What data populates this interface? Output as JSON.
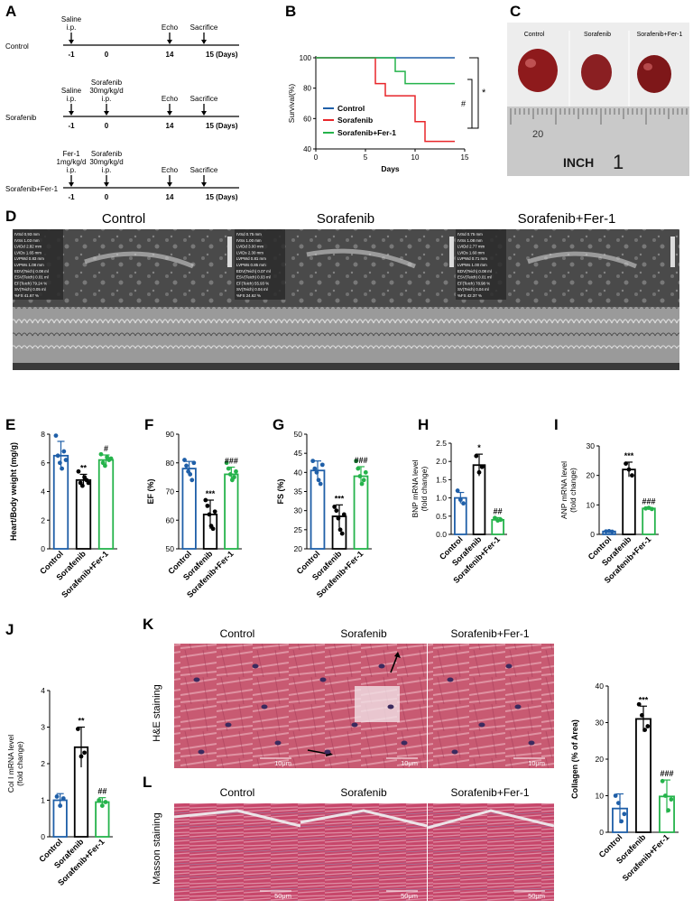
{
  "panels": {
    "A": {
      "letter": "A",
      "rows": [
        {
          "group": "Control",
          "events": [
            {
              "day": "-1",
              "label": "Saline\ni.p."
            },
            {
              "day": "0",
              "label": ""
            },
            {
              "day": "14",
              "label": "Echo"
            },
            {
              "day": "15 (Days)",
              "label": "Sacrifice"
            }
          ]
        },
        {
          "group": "Sorafenib",
          "events": [
            {
              "day": "-1",
              "label": "Saline\ni.p."
            },
            {
              "day": "0",
              "label": "Sorafenib\n30mg/kg/d\ni.p."
            },
            {
              "day": "14",
              "label": "Echo"
            },
            {
              "day": "15 (Days)",
              "label": "Sacrifice"
            }
          ]
        },
        {
          "group": "Sorafenib+Fer-1",
          "events": [
            {
              "day": "-1",
              "label": "Fer-1\n1mg/kg/d\ni.p."
            },
            {
              "day": "0",
              "label": "Sorafenib\n30mg/kg/d\ni.p."
            },
            {
              "day": "14",
              "label": "Echo"
            },
            {
              "day": "15 (Days)",
              "label": "Sacrifice"
            }
          ]
        }
      ]
    },
    "B": {
      "letter": "B",
      "sig_hash": "#",
      "sig_star": "*",
      "colors": {
        "Control": "#1f5fa8",
        "Sorafenib": "#e8262a",
        "Sorafenib+Fer-1": "#25b34b"
      }
    },
    "C": {
      "letter": "C",
      "labels": [
        "Control",
        "Sorafenib",
        "Sorafenib+Fer-1"
      ],
      "ruler_number": "20",
      "ruler_text": "INCH",
      "ruler_one": "1"
    },
    "D": {
      "letter": "D",
      "titles": [
        "Control",
        "Sorafenib",
        "Sorafenib+Fer-1"
      ],
      "readouts": [
        [
          "IVSd 0.93 mm",
          "IVSs 1.03 mm",
          "LVIDd 2.82 mm",
          "LVIDs 1.65 mm",
          "LVPWd 0.83 mm",
          "LVPWs 1.08 mm",
          "EDV(Teich) 0.08 ml",
          "ESV(Teich) 0.01 ml",
          "EF(Teich) 79.24 %",
          "SV(Teich) 0.05 ml",
          "%FS 41.67 %"
        ],
        [
          "IVSd 0.75 mm",
          "IVSs 1.00 mm",
          "LVIDd 3.00 mm",
          "LVIDs 2.30 mm",
          "LVPWd 0.81 mm",
          "LVPWs 0.85 mm",
          "EDV(Teich) 0.07 ml",
          "ESV(Teich) 0.03 ml",
          "EF(Teich) 55.93 %",
          "SV(Teich) 0.04 ml",
          "%FS 24.62 %"
        ],
        [
          "IVSd 0.75 mm",
          "IVSs 1.08 mm",
          "LVIDd 2.77 mm",
          "LVIDs 1.60 mm",
          "LVPWd 0.71 mm",
          "LVPWs 1.00 mm",
          "EDV(Teich) 0.08 ml",
          "ESV(Teich) 0.01 ml",
          "EF(Teich) 78.98 %",
          "SV(Teich) 0.04 ml",
          "%FS 42.37 %"
        ]
      ]
    },
    "E": {
      "letter": "E",
      "sig": [
        "",
        "**",
        "#"
      ]
    },
    "F": {
      "letter": "F",
      "sig": [
        "",
        "***",
        "###"
      ]
    },
    "G": {
      "letter": "G",
      "sig": [
        "",
        "***",
        "###"
      ]
    },
    "H": {
      "letter": "H",
      "sig": [
        "",
        "*",
        "##"
      ]
    },
    "I": {
      "letter": "I",
      "sig": [
        "",
        "***",
        "###"
      ]
    },
    "J": {
      "letter": "J",
      "sig": [
        "",
        "**",
        "##"
      ]
    },
    "K": {
      "letter": "K",
      "titles": [
        "Control",
        "Sorafenib",
        "Sorafenib+Fer-1"
      ],
      "side_label": "H&E staining",
      "scale": "10μm"
    },
    "L": {
      "letter": "L",
      "titles": [
        "Control",
        "Sorafenib",
        "Sorafenib+Fer-1"
      ],
      "side_label": "Masson staining",
      "scale": "50μm"
    },
    "collagen": {
      "sig": [
        "",
        "***",
        "###"
      ]
    }
  },
  "chart_data": [
    {
      "panel": "B",
      "type": "line",
      "xlabel": "Days",
      "ylabel": "Survival(%)",
      "xlim": [
        0,
        15
      ],
      "ylim": [
        40,
        100
      ],
      "xticks": [
        0,
        5,
        10,
        15
      ],
      "yticks": [
        40,
        60,
        80,
        100
      ],
      "series": [
        {
          "name": "Control",
          "color": "#1f5fa8",
          "x": [
            0,
            14
          ],
          "y": [
            100,
            100
          ]
        },
        {
          "name": "Sorafenib",
          "color": "#e8262a",
          "x": [
            0,
            6,
            6,
            7,
            8,
            8,
            10,
            11,
            14
          ],
          "y": [
            100,
            100,
            83,
            75,
            75,
            75,
            58,
            45,
            45
          ]
        },
        {
          "name": "Sorafenib+Fer-1",
          "color": "#25b34b",
          "x": [
            0,
            8,
            8,
            9,
            14
          ],
          "y": [
            100,
            100,
            91,
            83,
            83
          ]
        }
      ]
    },
    {
      "panel": "E",
      "type": "bar",
      "ylabel": "Heart/Body weight (mg/g)",
      "categories": [
        "Control",
        "Sorafenib",
        "Sorafenib+Fer-1"
      ],
      "ylim": [
        0,
        8
      ],
      "yticks": [
        0,
        2,
        4,
        6,
        8
      ],
      "values": [
        6.5,
        4.8,
        6.2
      ],
      "errors": [
        1.0,
        0.4,
        0.35
      ],
      "points": [
        [
          7.9,
          6.5,
          6.0,
          5.6,
          6.8,
          6.2
        ],
        [
          5.4,
          4.6,
          4.4,
          5.0,
          4.8,
          4.6
        ],
        [
          6.6,
          6.0,
          5.8,
          6.4,
          6.2,
          6.3
        ]
      ],
      "colors": [
        "#1f5fa8",
        "#000000",
        "#25b34b"
      ]
    },
    {
      "panel": "F",
      "type": "bar",
      "ylabel": "EF (%)",
      "categories": [
        "Control",
        "Sorafenib",
        "Sorafenib+Fer-1"
      ],
      "ylim": [
        50,
        90
      ],
      "yticks": [
        50,
        60,
        70,
        80,
        90
      ],
      "values": [
        78,
        62,
        76
      ],
      "errors": [
        2.5,
        5.0,
        2.5
      ],
      "points": [
        [
          81,
          79,
          77,
          76,
          74,
          80
        ],
        [
          67,
          65,
          62,
          58,
          57,
          63
        ],
        [
          80,
          78,
          76,
          74,
          75,
          77
        ]
      ],
      "colors": [
        "#1f5fa8",
        "#000000",
        "#25b34b"
      ]
    },
    {
      "panel": "G",
      "type": "bar",
      "ylabel": "FS (%)",
      "categories": [
        "Control",
        "Sorafenib",
        "Sorafenib+Fer-1"
      ],
      "ylim": [
        20,
        50
      ],
      "yticks": [
        20,
        25,
        30,
        35,
        40,
        45,
        50
      ],
      "values": [
        40.5,
        28.5,
        39
      ],
      "errors": [
        2.5,
        3.0,
        2.5
      ],
      "points": [
        [
          43,
          41,
          40,
          38,
          37,
          42
        ],
        [
          31,
          30,
          28,
          25,
          24,
          29
        ],
        [
          43,
          41,
          39,
          37,
          38,
          40
        ]
      ],
      "colors": [
        "#1f5fa8",
        "#000000",
        "#25b34b"
      ]
    },
    {
      "panel": "H",
      "type": "bar",
      "ylabel": "BNP mRNA level\n(fold change)",
      "categories": [
        "Control",
        "Sorafenib",
        "Sorafenib+Fer-1"
      ],
      "ylim": [
        0,
        2.5
      ],
      "yticks": [
        0.0,
        0.5,
        1.0,
        1.5,
        2.0,
        2.5
      ],
      "values": [
        1.0,
        1.9,
        0.4
      ],
      "errors": [
        0.15,
        0.3,
        0.06
      ],
      "points": [
        [
          1.2,
          0.95,
          0.85
        ],
        [
          2.15,
          1.7,
          1.85
        ],
        [
          0.45,
          0.38,
          0.4
        ]
      ],
      "colors": [
        "#1f5fa8",
        "#000000",
        "#25b34b"
      ]
    },
    {
      "panel": "I",
      "type": "bar",
      "ylabel": "ANP mRNA level\n(fold change)",
      "categories": [
        "Control",
        "Sorafenib",
        "Sorafenib+Fer-1"
      ],
      "ylim": [
        0,
        30
      ],
      "yticks": [
        0,
        10,
        20,
        30
      ],
      "values": [
        1.0,
        22,
        8.8
      ],
      "errors": [
        0.2,
        2.5,
        0.3
      ],
      "points": [
        [
          1.0,
          1.1,
          0.9
        ],
        [
          24,
          22,
          20
        ],
        [
          8.8,
          9.0,
          8.6
        ]
      ],
      "colors": [
        "#1f5fa8",
        "#000000",
        "#25b34b"
      ]
    },
    {
      "panel": "J",
      "type": "bar",
      "ylabel": "Col I mRNA level\n(fold change)",
      "categories": [
        "Control",
        "Sorafenib",
        "Sorafenib+Fer-1"
      ],
      "ylim": [
        0,
        4
      ],
      "yticks": [
        0,
        1,
        2,
        3,
        4
      ],
      "values": [
        1.0,
        2.45,
        0.95
      ],
      "errors": [
        0.18,
        0.55,
        0.12
      ],
      "points": [
        [
          1.1,
          0.85,
          1.05
        ],
        [
          2.95,
          2.2,
          2.3
        ],
        [
          1.0,
          0.85,
          0.95
        ]
      ],
      "colors": [
        "#1f5fa8",
        "#000000",
        "#25b34b"
      ]
    },
    {
      "panel": "K/L",
      "type": "bar",
      "ylabel": "Collagen (% of Area)",
      "categories": [
        "Control",
        "Sorafenib",
        "Sorafenib+Fer-1"
      ],
      "ylim": [
        0,
        40
      ],
      "yticks": [
        0,
        10,
        20,
        30,
        40
      ],
      "values": [
        6.5,
        31,
        9.8
      ],
      "errors": [
        4.0,
        3.5,
        4.5
      ],
      "points": [
        [
          10,
          8,
          3,
          5
        ],
        [
          35,
          32,
          28,
          29
        ],
        [
          14,
          10,
          6,
          9
        ]
      ],
      "colors": [
        "#1f5fa8",
        "#000000",
        "#25b34b"
      ]
    }
  ]
}
